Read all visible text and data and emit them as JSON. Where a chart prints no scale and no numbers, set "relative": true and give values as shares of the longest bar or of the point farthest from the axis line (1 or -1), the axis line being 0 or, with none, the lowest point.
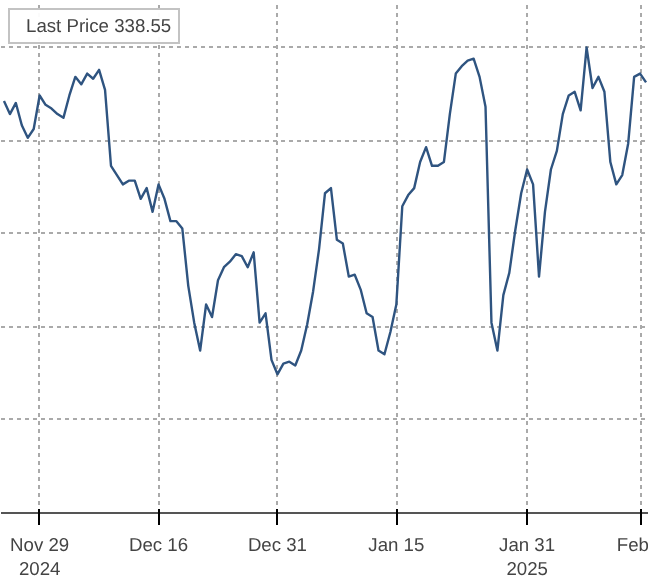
{
  "chart_data": {
    "type": "line",
    "relative": true,
    "grid": true,
    "legend": "top left",
    "categories": [
      null,
      null,
      null,
      null,
      null,
      null,
      "Nov 29\n2024",
      null,
      null,
      null,
      null,
      null,
      null,
      null,
      null,
      null,
      null,
      null,
      null,
      null,
      null,
      null,
      null,
      null,
      null,
      null,
      "Dec 16",
      null,
      null,
      null,
      null,
      null,
      null,
      null,
      null,
      null,
      null,
      null,
      null,
      null,
      null,
      null,
      null,
      null,
      null,
      null,
      "Dec 31",
      null,
      null,
      null,
      null,
      null,
      null,
      null,
      null,
      null,
      null,
      null,
      null,
      null,
      null,
      null,
      null,
      null,
      null,
      null,
      "Jan 15",
      null,
      null,
      null,
      null,
      null,
      null,
      null,
      null,
      null,
      null,
      null,
      null,
      null,
      null,
      null,
      null,
      null,
      null,
      null,
      null,
      null,
      "Jan 31\n2025",
      null,
      null,
      null,
      null,
      null,
      null,
      null,
      null,
      null,
      null,
      null,
      null,
      null,
      null,
      null,
      null,
      null,
      null,
      "Feb",
      null
    ],
    "series": [
      {
        "name": "Last Price 338.55",
        "color": "#2f5480",
        "values": [
          0.885,
          0.857,
          0.881,
          0.833,
          0.806,
          0.825,
          0.897,
          0.877,
          0.869,
          0.857,
          0.849,
          0.897,
          0.937,
          0.921,
          0.944,
          0.933,
          0.952,
          0.909,
          0.746,
          0.726,
          0.706,
          0.714,
          0.714,
          0.675,
          0.698,
          0.647,
          0.706,
          0.675,
          0.627,
          0.627,
          0.611,
          0.488,
          0.409,
          0.349,
          0.448,
          0.421,
          0.5,
          0.528,
          0.54,
          0.556,
          0.552,
          0.528,
          0.56,
          0.409,
          0.429,
          0.329,
          0.298,
          0.321,
          0.325,
          0.317,
          0.349,
          0.405,
          0.476,
          0.567,
          0.687,
          0.698,
          0.587,
          0.579,
          0.508,
          0.512,
          0.48,
          0.429,
          0.421,
          0.349,
          0.341,
          0.389,
          0.448,
          0.659,
          0.683,
          0.698,
          0.754,
          0.786,
          0.746,
          0.746,
          0.754,
          0.857,
          0.944,
          0.96,
          0.972,
          0.976,
          0.937,
          0.873,
          0.409,
          0.349,
          0.468,
          0.516,
          0.607,
          0.687,
          0.738,
          0.706,
          0.508,
          0.647,
          0.738,
          0.778,
          0.857,
          0.897,
          0.905,
          0.865,
          1.0,
          0.913,
          0.937,
          0.905,
          0.754,
          0.706,
          0.726,
          0.794,
          0.937,
          0.944,
          0.925
        ]
      }
    ]
  }
}
